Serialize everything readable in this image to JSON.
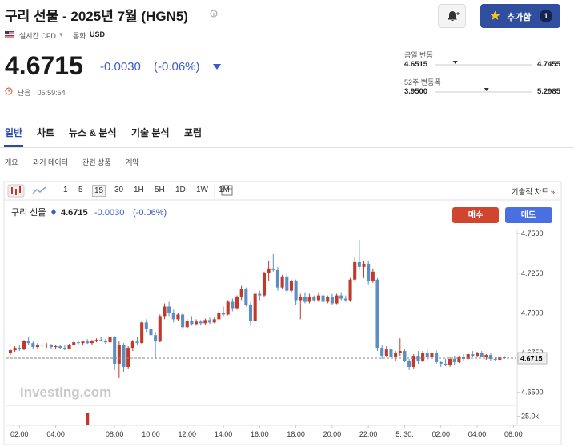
{
  "header": {
    "title": "구리 선물 - 2025년 7월 (HGN5)",
    "add_button": "추가함",
    "add_count": "1",
    "mode": "실시간 CFD",
    "currency_label": "통화",
    "currency": "USD"
  },
  "quote": {
    "price": "4.6715",
    "change": "-0.0030",
    "change_pct": "(-0.06%)",
    "status": "단음 · 05:59:54"
  },
  "ranges": [
    {
      "label": "금일 변동",
      "low": "4.6515",
      "high": "4.7455"
    },
    {
      "label": "52주 변동폭",
      "low": "3.9500",
      "high": "5.2985"
    }
  ],
  "tabs": [
    "일반",
    "차트",
    "뉴스 & 분석",
    "기술 분석",
    "포럼"
  ],
  "active_tab": "일반",
  "subtabs": [
    "개요",
    "과거 데이터",
    "관련 상품",
    "계약"
  ],
  "intervals": [
    "1",
    "5",
    "15",
    "30",
    "1H",
    "5H",
    "1D",
    "1W",
    "1M"
  ],
  "active_interval": "15",
  "tech_chart_link": "기술적 차트 »",
  "chart_data": {
    "type": "candlestick",
    "name": "구리 선물",
    "price": "4.6715",
    "change": "-0.0030",
    "change_pct": "(-0.06%)",
    "buy": "매수",
    "sell": "매도",
    "watermark": "Investing.com",
    "up_color": "#c0392b",
    "down_color": "#5b8ec4",
    "ylim": [
      4.6428,
      4.7531
    ],
    "yticks": [
      {
        "value": 4.75,
        "label": "4.7500"
      },
      {
        "value": 4.725,
        "label": "4.7250"
      },
      {
        "value": 4.7,
        "label": "4.7000"
      },
      {
        "value": 4.675,
        "label": "4.6750"
      },
      {
        "value": 4.65,
        "label": "4.6500"
      }
    ],
    "last": 4.6715,
    "xlim": [
      -0.88,
      111.65
    ],
    "xticks": [
      {
        "value": 2,
        "label": "02:00"
      },
      {
        "value": 10,
        "label": "04:00"
      },
      {
        "value": 23,
        "label": "08:00"
      },
      {
        "value": 31,
        "label": "10:00"
      },
      {
        "value": 39,
        "label": "12:00"
      },
      {
        "value": 47,
        "label": "14:00"
      },
      {
        "value": 55,
        "label": "16:00"
      },
      {
        "value": 63,
        "label": "18:00"
      },
      {
        "value": 71,
        "label": "20:00"
      },
      {
        "value": 79,
        "label": "22:00"
      },
      {
        "value": 87,
        "label": "5. 30."
      },
      {
        "value": 95,
        "label": "02:00"
      },
      {
        "value": 103,
        "label": "04:00"
      },
      {
        "value": 111,
        "label": "06:00"
      }
    ],
    "candles": [
      [
        4.675,
        4.677,
        4.6735,
        4.6765
      ],
      [
        4.6765,
        4.679,
        4.6755,
        4.678
      ],
      [
        4.678,
        4.68,
        4.676,
        4.677
      ],
      [
        4.677,
        4.683,
        4.6765,
        4.6825
      ],
      [
        4.6825,
        4.6845,
        4.68,
        4.681
      ],
      [
        4.681,
        4.682,
        4.6775,
        4.6785
      ],
      [
        4.6785,
        4.681,
        4.6775,
        4.68
      ],
      [
        4.68,
        4.6815,
        4.6785,
        4.6795
      ],
      [
        4.6795,
        4.681,
        4.678,
        4.68
      ],
      [
        4.68,
        4.6805,
        4.6775,
        4.6785
      ],
      [
        4.6785,
        4.68,
        4.677,
        4.679
      ],
      [
        4.679,
        4.68,
        4.6775,
        4.678
      ],
      [
        4.678,
        4.6795,
        4.6765,
        4.6775
      ],
      [
        4.6775,
        4.6805,
        4.677,
        4.68
      ],
      [
        4.68,
        4.6825,
        4.6795,
        4.6815
      ],
      [
        4.6815,
        4.683,
        4.68,
        4.681
      ],
      [
        4.681,
        4.6825,
        4.6795,
        4.682
      ],
      [
        4.682,
        4.6835,
        4.6805,
        4.681
      ],
      [
        4.681,
        4.683,
        4.68,
        4.6825
      ],
      [
        4.6825,
        4.684,
        4.6815,
        4.683
      ],
      [
        4.683,
        4.685,
        4.682,
        4.6825
      ],
      [
        4.6825,
        4.6835,
        4.6805,
        4.6815
      ],
      [
        4.6815,
        4.686,
        4.681,
        4.685
      ],
      [
        4.685,
        4.6855,
        4.664,
        4.668
      ],
      [
        4.668,
        4.682,
        4.659,
        4.68
      ],
      [
        4.68,
        4.681,
        4.663,
        4.666
      ],
      [
        4.666,
        4.679,
        4.665,
        4.678
      ],
      [
        4.678,
        4.683,
        4.676,
        4.682
      ],
      [
        4.682,
        4.685,
        4.68,
        4.681
      ],
      [
        4.681,
        4.695,
        4.6805,
        4.694
      ],
      [
        4.694,
        4.696,
        4.688,
        4.69
      ],
      [
        4.69,
        4.692,
        4.684,
        4.686
      ],
      [
        4.686,
        4.688,
        4.671,
        4.682
      ],
      [
        4.682,
        4.699,
        4.6815,
        4.698
      ],
      [
        4.698,
        4.706,
        4.696,
        4.704
      ],
      [
        4.704,
        4.707,
        4.698,
        4.7
      ],
      [
        4.7,
        4.702,
        4.694,
        4.696
      ],
      [
        4.696,
        4.7,
        4.695,
        4.699
      ],
      [
        4.699,
        4.7,
        4.69,
        4.691
      ],
      [
        4.691,
        4.696,
        4.6905,
        4.695
      ],
      [
        4.695,
        4.698,
        4.692,
        4.693
      ],
      [
        4.693,
        4.696,
        4.692,
        4.6945
      ],
      [
        4.6945,
        4.6955,
        4.692,
        4.6935
      ],
      [
        4.6935,
        4.6965,
        4.6925,
        4.6955
      ],
      [
        4.6955,
        4.697,
        4.693,
        4.694
      ],
      [
        4.694,
        4.697,
        4.6935,
        4.696
      ],
      [
        4.696,
        4.701,
        4.695,
        4.7
      ],
      [
        4.7,
        4.704,
        4.698,
        4.699
      ],
      [
        4.699,
        4.708,
        4.6985,
        4.707
      ],
      [
        4.707,
        4.709,
        4.701,
        4.703
      ],
      [
        4.703,
        4.711,
        4.702,
        4.71
      ],
      [
        4.71,
        4.717,
        4.708,
        4.715
      ],
      [
        4.715,
        4.716,
        4.704,
        4.705
      ],
      [
        4.705,
        4.707,
        4.692,
        4.695
      ],
      [
        4.695,
        4.713,
        4.694,
        4.712
      ],
      [
        4.712,
        4.714,
        4.708,
        4.711
      ],
      [
        4.711,
        4.726,
        4.71,
        4.725
      ],
      [
        4.725,
        4.733,
        4.72,
        4.728
      ],
      [
        4.728,
        4.737,
        4.726,
        4.727
      ],
      [
        4.727,
        4.729,
        4.714,
        4.716
      ],
      [
        4.716,
        4.724,
        4.715,
        4.723
      ],
      [
        4.723,
        4.725,
        4.712,
        4.714
      ],
      [
        4.714,
        4.721,
        4.713,
        4.72
      ],
      [
        4.72,
        4.721,
        4.705,
        4.708
      ],
      [
        4.708,
        4.712,
        4.696,
        4.71
      ],
      [
        4.71,
        4.713,
        4.706,
        4.707
      ],
      [
        4.707,
        4.712,
        4.706,
        4.71
      ],
      [
        4.71,
        4.711,
        4.707,
        4.708
      ],
      [
        4.708,
        4.713,
        4.707,
        4.711
      ],
      [
        4.711,
        4.713,
        4.706,
        4.707
      ],
      [
        4.707,
        4.711,
        4.706,
        4.71
      ],
      [
        4.71,
        4.712,
        4.705,
        4.706
      ],
      [
        4.706,
        4.712,
        4.7055,
        4.711
      ],
      [
        4.711,
        4.713,
        4.708,
        4.709
      ],
      [
        4.709,
        4.711,
        4.707,
        4.708
      ],
      [
        4.708,
        4.722,
        4.707,
        4.721
      ],
      [
        4.721,
        4.735,
        4.72,
        4.732
      ],
      [
        4.732,
        4.746,
        4.727,
        4.729
      ],
      [
        4.729,
        4.733,
        4.722,
        4.731
      ],
      [
        4.731,
        4.733,
        4.718,
        4.72
      ],
      [
        4.72,
        4.728,
        4.719,
        4.726
      ],
      [
        4.721,
        4.722,
        4.676,
        4.678
      ],
      [
        4.678,
        4.68,
        4.671,
        4.673
      ],
      [
        4.673,
        4.679,
        4.672,
        4.677
      ],
      [
        4.677,
        4.678,
        4.67,
        4.672
      ],
      [
        4.672,
        4.676,
        4.67,
        4.675
      ],
      [
        4.675,
        4.684,
        4.673,
        4.676
      ],
      [
        4.676,
        4.677,
        4.669,
        4.67
      ],
      [
        4.67,
        4.671,
        4.664,
        4.666
      ],
      [
        4.666,
        4.674,
        4.665,
        4.673
      ],
      [
        4.673,
        4.676,
        4.668,
        4.67
      ],
      [
        4.67,
        4.676,
        4.669,
        4.675
      ],
      [
        4.675,
        4.677,
        4.67,
        4.672
      ],
      [
        4.672,
        4.676,
        4.671,
        4.6745
      ],
      [
        4.6745,
        4.6765,
        4.668,
        4.669
      ],
      [
        4.669,
        4.67,
        4.666,
        4.668
      ],
      [
        4.668,
        4.671,
        4.6665,
        4.667
      ],
      [
        4.667,
        4.672,
        4.666,
        4.671
      ],
      [
        4.671,
        4.673,
        4.667,
        4.669
      ],
      [
        4.669,
        4.673,
        4.6685,
        4.672
      ],
      [
        4.672,
        4.674,
        4.67,
        4.671
      ],
      [
        4.671,
        4.675,
        4.6705,
        4.674
      ],
      [
        4.674,
        4.676,
        4.672,
        4.673
      ],
      [
        4.673,
        4.6755,
        4.6725,
        4.675
      ],
      [
        4.675,
        4.676,
        4.672,
        4.6725
      ],
      [
        4.6725,
        4.674,
        4.6705,
        4.6735
      ],
      [
        4.6735,
        4.6745,
        4.67,
        4.671
      ],
      [
        4.671,
        4.6725,
        4.6695,
        4.6705
      ],
      [
        4.6705,
        4.6725,
        4.67,
        4.672
      ],
      [
        4.672,
        4.673,
        4.671,
        4.6715
      ]
    ],
    "volume": {
      "color": "#c0392b",
      "ylim": [
        0,
        52000
      ],
      "yticks": [
        {
          "value": 25000,
          "label": "25.0k"
        }
      ],
      "values": [
        null,
        null,
        null,
        null,
        null,
        null,
        null,
        null,
        null,
        null,
        null,
        null,
        null,
        null,
        null,
        null,
        null,
        33000,
        null,
        null,
        null,
        null,
        null,
        null,
        null,
        null,
        null,
        null,
        null,
        null,
        null,
        null,
        null,
        null,
        null,
        null,
        null,
        null,
        null,
        null,
        null,
        null,
        null,
        null,
        null,
        null,
        null,
        null,
        null,
        null,
        null,
        null,
        null,
        null,
        null,
        null,
        null,
        null,
        null,
        null,
        null,
        null,
        null,
        null,
        null,
        null,
        null,
        null,
        null,
        null,
        null,
        null,
        null,
        null,
        null,
        null,
        null,
        null,
        null,
        null,
        null,
        null,
        null,
        null,
        null,
        null,
        null,
        null,
        null,
        null,
        null,
        null,
        null,
        null,
        null,
        null,
        null,
        null,
        null,
        null,
        null,
        null,
        null,
        null,
        null,
        null,
        null,
        null,
        null,
        null
      ]
    }
  }
}
